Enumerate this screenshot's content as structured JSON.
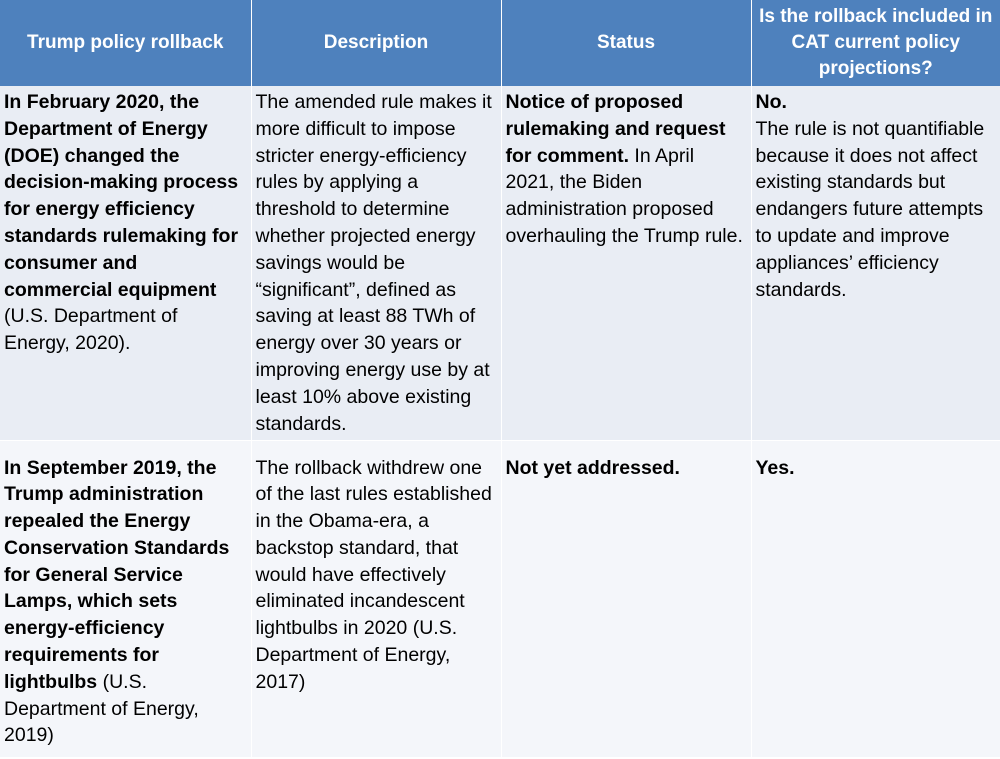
{
  "headers": [
    "Trump policy rollback",
    "Description",
    "Status",
    "Is the rollback included in CAT current policy projections?"
  ],
  "rows": [
    {
      "rollback_bold": "In February 2020, the Department of Energy (DOE) changed the decision-making process for energy efficiency standards rulemaking for consumer and commercial equipment",
      "rollback_normal": " (U.S. Department of Energy, 2020).",
      "description": "The amended rule makes it more difficult to impose stricter energy-efficiency rules by applying a threshold to determine whether projected energy savings would be “significant”, defined as saving at least 88 TWh of energy over 30 years or improving energy use by at least 10% above existing standards.",
      "status_bold": "Notice of proposed rulemaking and request for comment.",
      "status_normal": " In April 2021, the Biden administration proposed overhauling the Trump rule.",
      "included_bold": "No.",
      "included_normal": "The rule is not quantifiable because it does not affect existing standards but endangers future attempts to update and improve appliances’ efficiency standards."
    },
    {
      "rollback_bold": "In September 2019, the Trump administration repealed the Energy Conservation Standards for General Service Lamps, which sets energy-efficiency requirements for lightbulbs",
      "rollback_normal": " (U.S. Department of Energy, 2019)",
      "description": "The rollback withdrew one of the last rules established in the Obama-era, a backstop standard, that would have effectively eliminated incandescent lightbulbs in 2020 (U.S. Department of Energy, 2017)",
      "status_bold": "Not yet addressed.",
      "status_normal": "",
      "included_bold": "Yes.",
      "included_normal": ""
    }
  ]
}
